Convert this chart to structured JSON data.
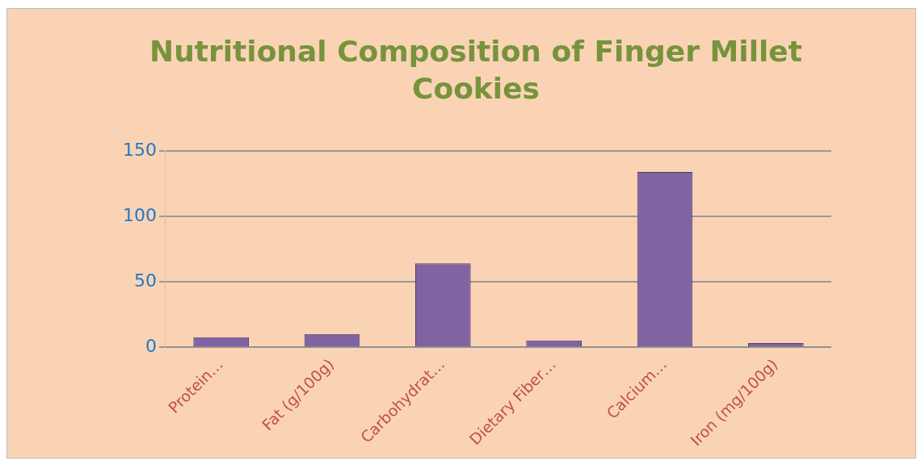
{
  "chart_data": {
    "type": "bar",
    "title": "Nutritional Composition of Finger Millet Cookies",
    "categories": [
      "Protein…",
      "Fat (g/100g)",
      "Carbohydrat…",
      "Dietary Fiber…",
      "Calcium…",
      "Iron (mg/100g)"
    ],
    "values": [
      7.5,
      10,
      64,
      5,
      134,
      3
    ],
    "color": "#8064a2",
    "ylim": [
      0,
      150
    ],
    "yticks": [
      0,
      50,
      100,
      150
    ],
    "grid": "y"
  }
}
